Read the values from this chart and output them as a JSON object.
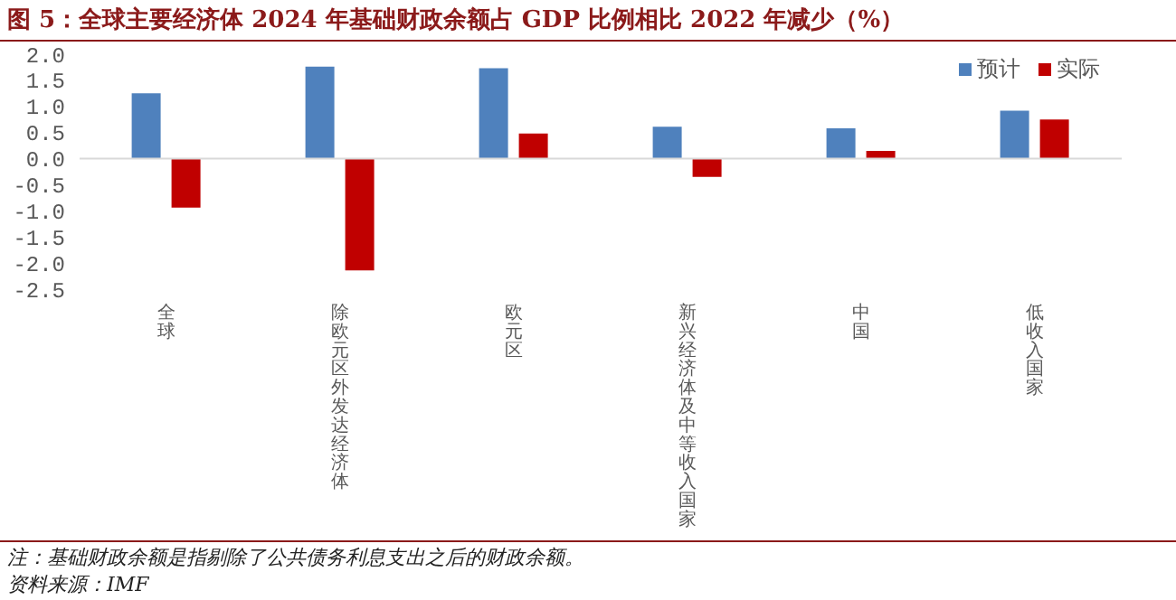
{
  "chart_data": {
    "type": "bar",
    "title": "图 5：全球主要经济体 2024 年基础财政余额占 GDP 比例相比 2022 年减少（%）",
    "categories": [
      "全球",
      "除欧元区外发达经济体",
      "欧元区",
      "新兴经济体及中等收入国家",
      "中国",
      "低收入国家"
    ],
    "series": [
      {
        "name": "预计",
        "color": "#4f81bd",
        "values": [
          1.25,
          1.76,
          1.73,
          0.61,
          0.58,
          0.92
        ]
      },
      {
        "name": "实际",
        "color": "#c00000",
        "values": [
          -0.94,
          -2.14,
          0.48,
          -0.35,
          0.15,
          0.75
        ]
      }
    ],
    "ylim": [
      -2.5,
      2.0
    ],
    "yticks": [
      {
        "value": -2.5,
        "label": "-2.5"
      },
      {
        "value": -2,
        "label": "-2.0"
      },
      {
        "value": -1.5,
        "label": "-1.5"
      },
      {
        "value": -1,
        "label": "-1.0"
      },
      {
        "value": -0.5,
        "label": "-0.5"
      },
      {
        "value": 0,
        "label": "0.0"
      },
      {
        "value": 0.5,
        "label": "0.5"
      },
      {
        "value": 1,
        "label": "1.0"
      },
      {
        "value": 1.5,
        "label": "1.5"
      },
      {
        "value": 2,
        "label": "2.0"
      }
    ],
    "grid": false,
    "ref_lines": [
      {
        "axis": "y",
        "value": 0,
        "color": "#d9d9d9"
      }
    ],
    "legend": "top right",
    "annotations": [
      "注：基础财政余额是指剔除了公共债务利息支出之后的财政余额。",
      "资料来源：IMF"
    ]
  }
}
